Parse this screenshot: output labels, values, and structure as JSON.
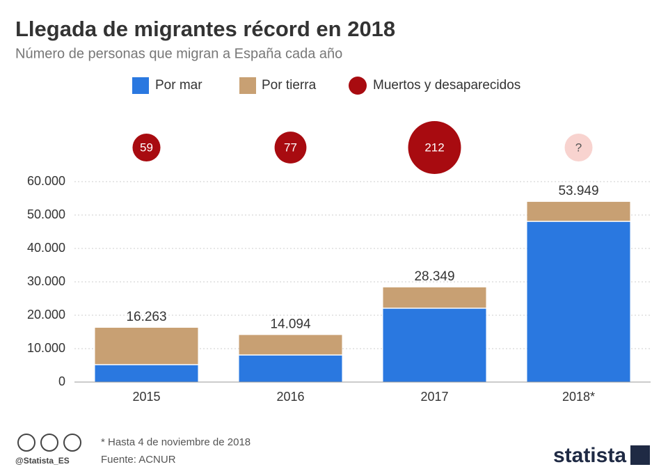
{
  "chart_data": {
    "type": "stacked_bar_bubble",
    "title": "Llegada de migrantes récord en 2018",
    "subtitle": "Número de personas que migran a España cada año",
    "categories": [
      "2015",
      "2016",
      "2017",
      "2018*"
    ],
    "series": [
      {
        "name": "Por mar",
        "color": "#2a78e0",
        "values": [
          5200,
          8100,
          22100,
          48100
        ]
      },
      {
        "name": "Por tierra",
        "color": "#c8a073",
        "values": [
          11063,
          5994,
          6249,
          5849
        ]
      }
    ],
    "totals": {
      "values": [
        16263,
        14094,
        28349,
        53949
      ],
      "value_labels": [
        "16.263",
        "14.094",
        "28.349",
        "53.949"
      ]
    },
    "bubbles": {
      "name": "Muertos y desaparecidos",
      "color": "#a80b10",
      "missing_color": "#f8d3cf",
      "values": [
        59,
        77,
        212,
        null
      ],
      "value_labels": [
        "59",
        "77",
        "212",
        "?"
      ]
    },
    "ylim": [
      0,
      60000
    ],
    "yticks": [
      0,
      {
        "value": 10000,
        "label": "10.000"
      },
      {
        "value": 20000,
        "label": "20.000"
      },
      {
        "value": 30000,
        "label": "30.000"
      },
      {
        "value": 40000,
        "label": "40.000"
      },
      {
        "value": 50000,
        "label": "50.000"
      },
      {
        "value": 60000,
        "label": "60.000"
      }
    ],
    "grid": true,
    "notes": [
      "* Hasta 4 de noviembre de 2018",
      "Fuente: ACNUR"
    ],
    "handle": "@Statista_ES",
    "brand": "statista"
  }
}
